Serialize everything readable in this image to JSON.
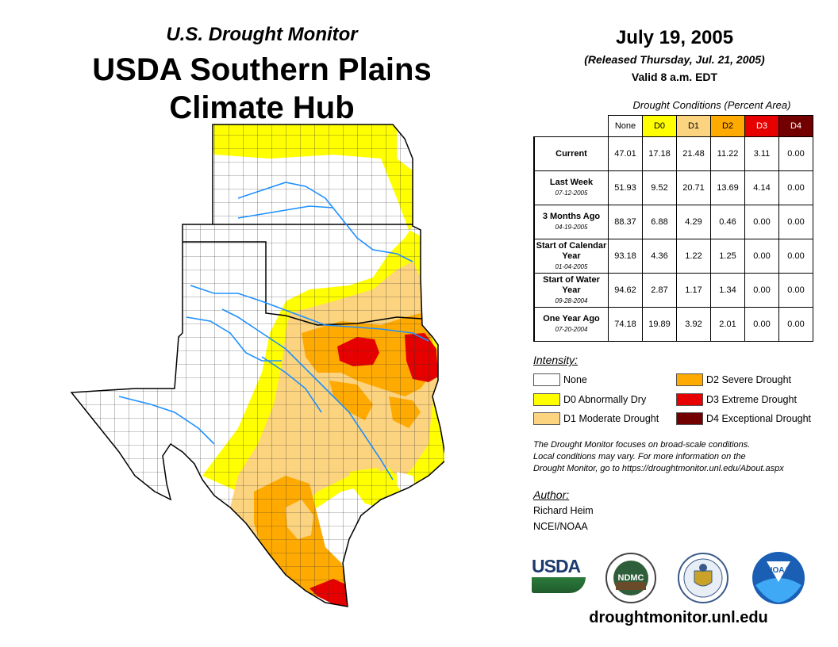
{
  "header": {
    "subtitle": "U.S. Drought Monitor",
    "title_line1": "USDA Southern Plains",
    "title_line2": "Climate Hub",
    "date": "July 19, 2005",
    "released": "(Released Thursday, Jul. 21, 2005)",
    "valid": "Valid 8 a.m. EDT"
  },
  "table": {
    "caption": "Drought Conditions (Percent Area)",
    "columns": [
      "None",
      "D0",
      "D1",
      "D2",
      "D3",
      "D4"
    ],
    "column_colors": [
      "#ffffff",
      "#ffff00",
      "#fcd37f",
      "#ffaa00",
      "#e60000",
      "#730000"
    ],
    "rows": [
      {
        "label": "Current",
        "date": "",
        "values": [
          "47.01",
          "17.18",
          "21.48",
          "11.22",
          "3.11",
          "0.00"
        ]
      },
      {
        "label": "Last Week",
        "date": "07-12-2005",
        "values": [
          "51.93",
          "9.52",
          "20.71",
          "13.69",
          "4.14",
          "0.00"
        ]
      },
      {
        "label": "3 Months Ago",
        "date": "04-19-2005",
        "values": [
          "88.37",
          "6.88",
          "4.29",
          "0.46",
          "0.00",
          "0.00"
        ]
      },
      {
        "label": "Start of Calendar Year",
        "date": "01-04-2005",
        "values": [
          "93.18",
          "4.36",
          "1.22",
          "1.25",
          "0.00",
          "0.00"
        ]
      },
      {
        "label": "Start of Water Year",
        "date": "09-28-2004",
        "values": [
          "94.62",
          "2.87",
          "1.17",
          "1.34",
          "0.00",
          "0.00"
        ]
      },
      {
        "label": "One Year Ago",
        "date": "07-20-2004",
        "values": [
          "74.18",
          "19.89",
          "3.92",
          "2.01",
          "0.00",
          "0.00"
        ]
      }
    ]
  },
  "legend": {
    "heading": "Intensity:",
    "items": [
      {
        "label": "None",
        "color": "#ffffff"
      },
      {
        "label": "D0 Abnormally Dry",
        "color": "#ffff00"
      },
      {
        "label": "D1 Moderate Drought",
        "color": "#fcd37f"
      },
      {
        "label": "D2 Severe Drought",
        "color": "#ffaa00"
      },
      {
        "label": "D3 Extreme Drought",
        "color": "#e60000"
      },
      {
        "label": "D4 Exceptional Drought",
        "color": "#730000"
      }
    ]
  },
  "note": {
    "line1": "The Drought Monitor focuses on broad-scale conditions.",
    "line2": "Local conditions may vary. For more information on the",
    "line3": "Drought Monitor, go to https://droughtmonitor.unl.edu/About.aspx"
  },
  "author": {
    "heading": "Author:",
    "name": "Richard Heim",
    "org": "NCEI/NOAA"
  },
  "logos": {
    "usda_text": "USDA",
    "ndmc_text": "NDMC",
    "noaa_text": "NOAA"
  },
  "footer": {
    "url": "droughtmonitor.unl.edu"
  }
}
